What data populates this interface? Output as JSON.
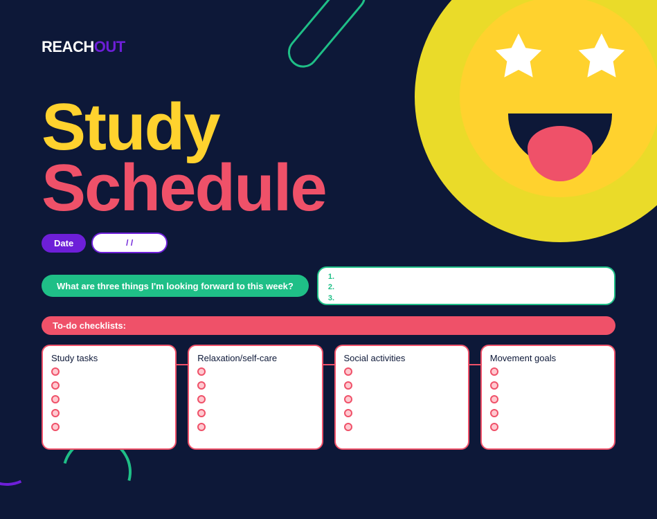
{
  "colors": {
    "background": "#0d1838",
    "yellow": "#ffd22e",
    "yellow_outer": "#eadb29",
    "pink": "#ef5169",
    "green": "#1fbf87",
    "purple": "#6d1fd8",
    "white": "#ffffff",
    "bullet_fill": "#ffc9d0"
  },
  "logo": {
    "part1": "REACH",
    "part2": "OUT"
  },
  "title": {
    "line1": "Study",
    "line2": "Schedule"
  },
  "date": {
    "label": "Date",
    "value": "/     /"
  },
  "question": {
    "prompt": "What are three things I'm looking forward to this week?",
    "answers": [
      "1.",
      "2.",
      "3."
    ]
  },
  "todo_header": "To-do checklists:",
  "checklists": [
    {
      "title": "Study tasks",
      "bullet_count": 5
    },
    {
      "title": "Relaxation/self-care",
      "bullet_count": 5
    },
    {
      "title": "Social activities",
      "bullet_count": 5
    },
    {
      "title": "Movement goals",
      "bullet_count": 5
    }
  ]
}
